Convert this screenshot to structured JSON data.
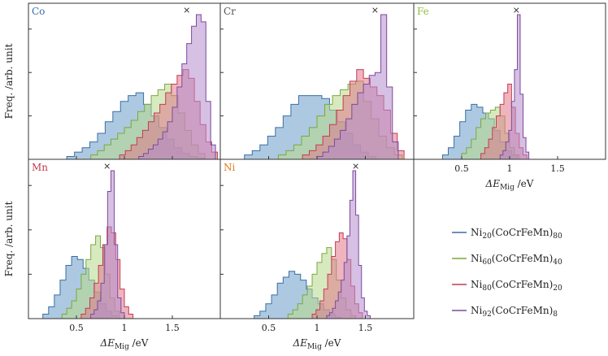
{
  "chart_data": [
    {
      "type": "histogram",
      "element": "Co",
      "label_color": "#3a6ea5",
      "xlim": [
        0,
        2
      ],
      "xticks": [],
      "marker_x": 1.65,
      "ylabel": "Freq. /arb. unit",
      "xlabel": "",
      "series": [
        {
          "name": "Ni20",
          "start": 0.4,
          "step": 0.08,
          "values": [
            0.02,
            0.05,
            0.08,
            0.12,
            0.18,
            0.26,
            0.33,
            0.4,
            0.44,
            0.46,
            0.38,
            0.3,
            0.22,
            0.14,
            0.08,
            0.04,
            0.02,
            0.01
          ]
        },
        {
          "name": "Ni60",
          "start": 0.65,
          "step": 0.07,
          "values": [
            0.03,
            0.06,
            0.1,
            0.14,
            0.18,
            0.22,
            0.27,
            0.33,
            0.38,
            0.44,
            0.48,
            0.52,
            0.44,
            0.32,
            0.2,
            0.1,
            0.04
          ]
        },
        {
          "name": "Ni80",
          "start": 0.95,
          "step": 0.06,
          "values": [
            0.03,
            0.06,
            0.1,
            0.15,
            0.2,
            0.26,
            0.32,
            0.38,
            0.46,
            0.52,
            0.58,
            0.62,
            0.56,
            0.4,
            0.24,
            0.12,
            0.05
          ]
        },
        {
          "name": "Ni92",
          "start": 1.15,
          "step": 0.05,
          "values": [
            0.02,
            0.04,
            0.07,
            0.1,
            0.14,
            0.19,
            0.26,
            0.36,
            0.5,
            0.66,
            0.8,
            0.92,
            1.0,
            0.95,
            0.4,
            0.1
          ]
        }
      ]
    },
    {
      "type": "histogram",
      "element": "Cr",
      "label_color": "#555555",
      "xlim": [
        0,
        2
      ],
      "xticks": [],
      "marker_x": 1.6,
      "ylabel": "",
      "xlabel": "",
      "series": [
        {
          "name": "Ni20",
          "start": 0.25,
          "step": 0.08,
          "values": [
            0.03,
            0.06,
            0.1,
            0.16,
            0.22,
            0.3,
            0.38,
            0.44,
            0.44,
            0.44,
            0.42,
            0.34,
            0.26,
            0.18,
            0.1,
            0.05,
            0.02
          ]
        },
        {
          "name": "Ni60",
          "start": 0.6,
          "step": 0.08,
          "values": [
            0.03,
            0.06,
            0.1,
            0.16,
            0.22,
            0.3,
            0.38,
            0.44,
            0.48,
            0.52,
            0.54,
            0.4,
            0.28,
            0.16,
            0.08,
            0.03
          ]
        },
        {
          "name": "Ni80",
          "start": 0.85,
          "step": 0.07,
          "values": [
            0.03,
            0.06,
            0.1,
            0.16,
            0.24,
            0.34,
            0.44,
            0.54,
            0.62,
            0.56,
            0.5,
            0.44,
            0.34,
            0.18,
            0.06
          ]
        },
        {
          "name": "Ni92",
          "start": 1.0,
          "step": 0.06,
          "values": [
            0.02,
            0.05,
            0.09,
            0.14,
            0.2,
            0.28,
            0.38,
            0.46,
            0.52,
            0.58,
            0.6,
            1.0,
            0.5,
            0.12
          ]
        }
      ]
    },
    {
      "type": "histogram",
      "element": "Fe",
      "label_color": "#8fbf3f",
      "xlim": [
        0,
        2
      ],
      "xticks": [
        0.5,
        1,
        1.5
      ],
      "marker_x": 1.07,
      "ylabel": "",
      "xlabel": "ΔE_Mig /eV",
      "series": [
        {
          "name": "Ni20",
          "start": 0.3,
          "step": 0.06,
          "values": [
            0.03,
            0.08,
            0.16,
            0.26,
            0.34,
            0.38,
            0.36,
            0.32,
            0.28,
            0.2,
            0.12,
            0.06,
            0.03
          ]
        },
        {
          "name": "Ni60",
          "start": 0.5,
          "step": 0.05,
          "values": [
            0.04,
            0.08,
            0.14,
            0.22,
            0.28,
            0.32,
            0.34,
            0.36,
            0.3,
            0.18,
            0.08,
            0.03
          ]
        },
        {
          "name": "Ni80",
          "start": 0.7,
          "step": 0.04,
          "values": [
            0.04,
            0.08,
            0.14,
            0.22,
            0.3,
            0.38,
            0.46,
            0.52,
            0.36,
            0.18,
            0.08,
            0.03
          ]
        },
        {
          "name": "Ni92",
          "start": 0.9,
          "step": 0.03,
          "values": [
            0.03,
            0.06,
            0.12,
            0.2,
            0.4,
            0.62,
            1.0,
            0.45,
            0.15,
            0.05
          ]
        }
      ]
    },
    {
      "type": "histogram",
      "element": "Mn",
      "label_color": "#c63a50",
      "xlim": [
        0,
        2
      ],
      "xticks": [
        0.5,
        1,
        1.5
      ],
      "marker_x": 0.82,
      "ylabel": "Freq. /arb. unit",
      "xlabel": "ΔE_Mig /eV",
      "series": [
        {
          "name": "Ni20",
          "start": 0.15,
          "step": 0.06,
          "values": [
            0.03,
            0.08,
            0.16,
            0.26,
            0.36,
            0.42,
            0.4,
            0.34,
            0.26,
            0.18,
            0.1,
            0.05,
            0.02
          ]
        },
        {
          "name": "Ni60",
          "start": 0.35,
          "step": 0.05,
          "values": [
            0.03,
            0.07,
            0.12,
            0.2,
            0.3,
            0.4,
            0.5,
            0.56,
            0.48,
            0.3,
            0.14,
            0.05
          ]
        },
        {
          "name": "Ni80",
          "start": 0.55,
          "step": 0.045,
          "values": [
            0.03,
            0.07,
            0.14,
            0.24,
            0.36,
            0.5,
            0.62,
            0.58,
            0.4,
            0.2,
            0.08,
            0.03
          ]
        },
        {
          "name": "Ni92",
          "start": 0.65,
          "step": 0.035,
          "values": [
            0.03,
            0.06,
            0.12,
            0.24,
            0.5,
            0.86,
            1.0,
            0.5,
            0.14,
            0.04
          ]
        }
      ]
    },
    {
      "type": "histogram",
      "element": "Ni",
      "label_color": "#e07a1f",
      "xlim": [
        0,
        2
      ],
      "xticks": [
        0.5,
        1,
        1.5
      ],
      "marker_x": 1.4,
      "ylabel": "",
      "xlabel": "ΔE_Mig /eV",
      "series": [
        {
          "name": "Ni20",
          "start": 0.35,
          "step": 0.06,
          "values": [
            0.02,
            0.05,
            0.1,
            0.16,
            0.24,
            0.28,
            0.32,
            0.3,
            0.26,
            0.2,
            0.14,
            0.1,
            0.06,
            0.03,
            0.01
          ]
        },
        {
          "name": "Ni60",
          "start": 0.7,
          "step": 0.05,
          "values": [
            0.03,
            0.06,
            0.1,
            0.16,
            0.22,
            0.3,
            0.38,
            0.44,
            0.48,
            0.4,
            0.26,
            0.14,
            0.06,
            0.02
          ]
        },
        {
          "name": "Ni80",
          "start": 0.95,
          "step": 0.04,
          "values": [
            0.03,
            0.06,
            0.12,
            0.2,
            0.3,
            0.42,
            0.52,
            0.58,
            0.54,
            0.4,
            0.22,
            0.1,
            0.04
          ]
        },
        {
          "name": "Ni92",
          "start": 1.1,
          "step": 0.03,
          "values": [
            0.02,
            0.04,
            0.07,
            0.12,
            0.18,
            0.26,
            0.38,
            0.56,
            0.8,
            1.0,
            0.7,
            0.36,
            0.14,
            0.05,
            0.02
          ]
        }
      ]
    }
  ],
  "legend": [
    {
      "key": "Ni20",
      "base": "Ni",
      "sub1": "20",
      "mid": "(CoCrFeMn)",
      "sub2": "80",
      "color": "#3a6ea5",
      "fill": "#6a9cc9"
    },
    {
      "key": "Ni60",
      "base": "Ni",
      "sub1": "60",
      "mid": "(CoCrFeMn)",
      "sub2": "40",
      "color": "#7aa93a",
      "fill": "#b6d98a"
    },
    {
      "key": "Ni80",
      "base": "Ni",
      "sub1": "80",
      "mid": "(CoCrFeMn)",
      "sub2": "20",
      "color": "#c63a50",
      "fill": "#e0788a"
    },
    {
      "key": "Ni92",
      "base": "Ni",
      "sub1": "92",
      "mid": "(CoCrFeMn)",
      "sub2": "8",
      "color": "#7d4a9e",
      "fill": "#b48ccc"
    }
  ],
  "marker_symbol": "×",
  "tick_labels": {
    "0.5": "0.5",
    "1": "1",
    "1.5": "1.5"
  },
  "xlabel_parts": {
    "delta": "ΔE",
    "sub": "Mig",
    "unit": " /eV"
  }
}
